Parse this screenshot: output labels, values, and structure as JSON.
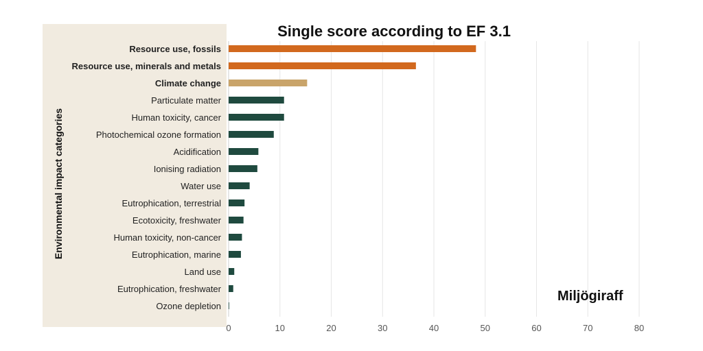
{
  "chart_data": {
    "type": "bar",
    "orientation": "horizontal",
    "title": "Single score according to EF 3.1",
    "ylabel": "Environmental impact categories",
    "xlabel": "",
    "xlim": [
      0,
      80
    ],
    "xticks": [
      0,
      10,
      20,
      30,
      40,
      50,
      60,
      70,
      80
    ],
    "grid": "vertical",
    "categories": [
      "Resource use, fossils",
      "Resource use, minerals and metals",
      "Climate change",
      "Particulate matter",
      "Human toxicity, cancer",
      "Photochemical ozone formation",
      "Acidification",
      "Ionising radiation",
      "Water use",
      "Eutrophication, terrestrial",
      "Ecotoxicity, freshwater",
      "Human toxicity, non-cancer",
      "Eutrophication, marine",
      "Land use",
      "Eutrophication, freshwater",
      "Ozone depletion"
    ],
    "values": [
      48.2,
      36.5,
      15.3,
      10.8,
      10.8,
      8.8,
      5.8,
      5.6,
      4.1,
      3.1,
      2.9,
      2.6,
      2.4,
      1.1,
      0.9,
      0.1
    ],
    "bold_labels": [
      true,
      true,
      true,
      false,
      false,
      false,
      false,
      false,
      false,
      false,
      false,
      false,
      false,
      false,
      false,
      false
    ],
    "colors": [
      "#d2691e",
      "#d2691e",
      "#c9a46a",
      "#1f4a3f",
      "#1f4a3f",
      "#1f4a3f",
      "#1f4a3f",
      "#1f4a3f",
      "#1f4a3f",
      "#1f4a3f",
      "#1f4a3f",
      "#1f4a3f",
      "#1f4a3f",
      "#1f4a3f",
      "#1f4a3f",
      "#1f4a3f"
    ],
    "panel_color": "#f1ebe0",
    "grid_color": "#e6e6e6"
  },
  "logo": {
    "text": "Miljögiraff"
  }
}
